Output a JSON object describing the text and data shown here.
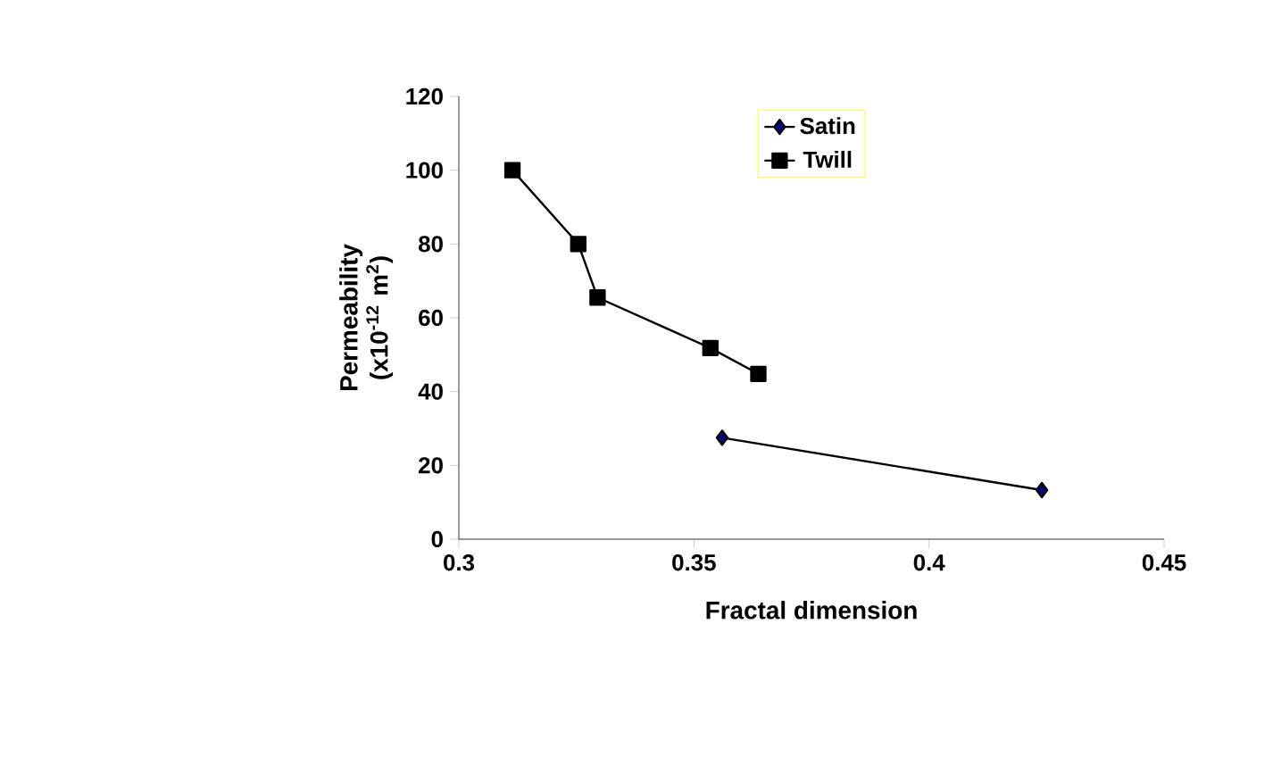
{
  "chart_data": {
    "type": "line",
    "xlabel": "Fractal dimension",
    "ylabel": "Permeability (x10$^{-12}$ m$^{2}$)",
    "series": [
      {
        "name": "Satin",
        "color": "#000080",
        "marker": "diamond",
        "x": [
          0.356,
          0.424
        ],
        "values": [
          27.5,
          13.3
        ]
      },
      {
        "name": "Twill",
        "color": "#000000",
        "marker": "square",
        "x": [
          0.3114,
          0.3254,
          0.3295,
          0.3535,
          0.3637
        ],
        "values": [
          100,
          80,
          65.5,
          51.8,
          44.8
        ]
      }
    ],
    "xlim": [
      0.3,
      0.45
    ],
    "xticks": [
      0.3,
      0.35,
      0.4,
      0.45
    ],
    "ylim": [
      0,
      120
    ],
    "yticks": [
      0,
      20,
      40,
      60,
      80,
      100,
      120
    ],
    "grid": false,
    "legend": "top",
    "line_style": "solid"
  }
}
